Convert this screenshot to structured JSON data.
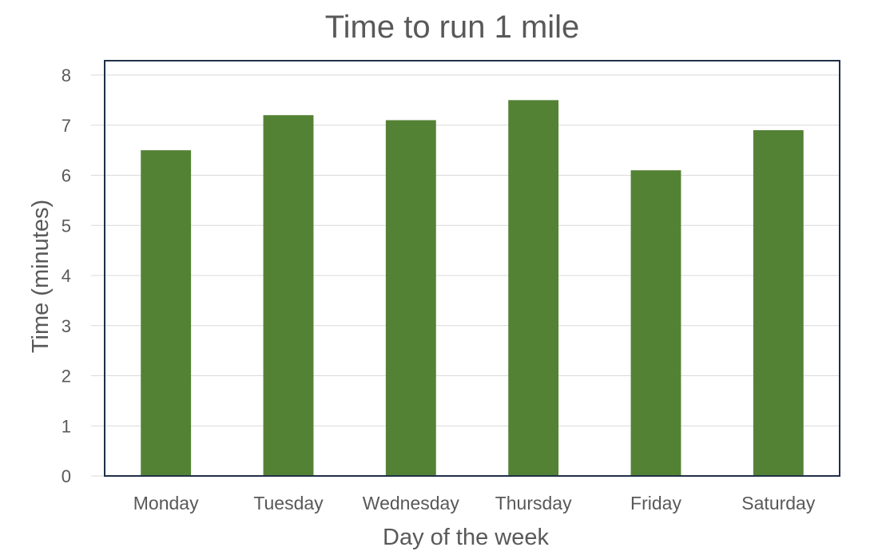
{
  "chart_data": {
    "type": "bar",
    "title": "Time to run 1 mile",
    "xlabel": "Day of the week",
    "ylabel": "Time (minutes)",
    "categories": [
      "Monday",
      "Tuesday",
      "Wednesday",
      "Thursday",
      "Friday",
      "Saturday"
    ],
    "values": [
      6.5,
      7.2,
      7.1,
      7.5,
      6.1,
      6.9
    ],
    "ylim": [
      0,
      8
    ],
    "yticks": [
      "0",
      "1",
      "2",
      "3",
      "4",
      "5",
      "6",
      "7",
      "8"
    ],
    "grid": true,
    "legend": "none",
    "colors": {
      "bar": "#548235",
      "plot_border": "#1f3048",
      "gridline": "#d9d9d9",
      "text": "#595959"
    }
  }
}
